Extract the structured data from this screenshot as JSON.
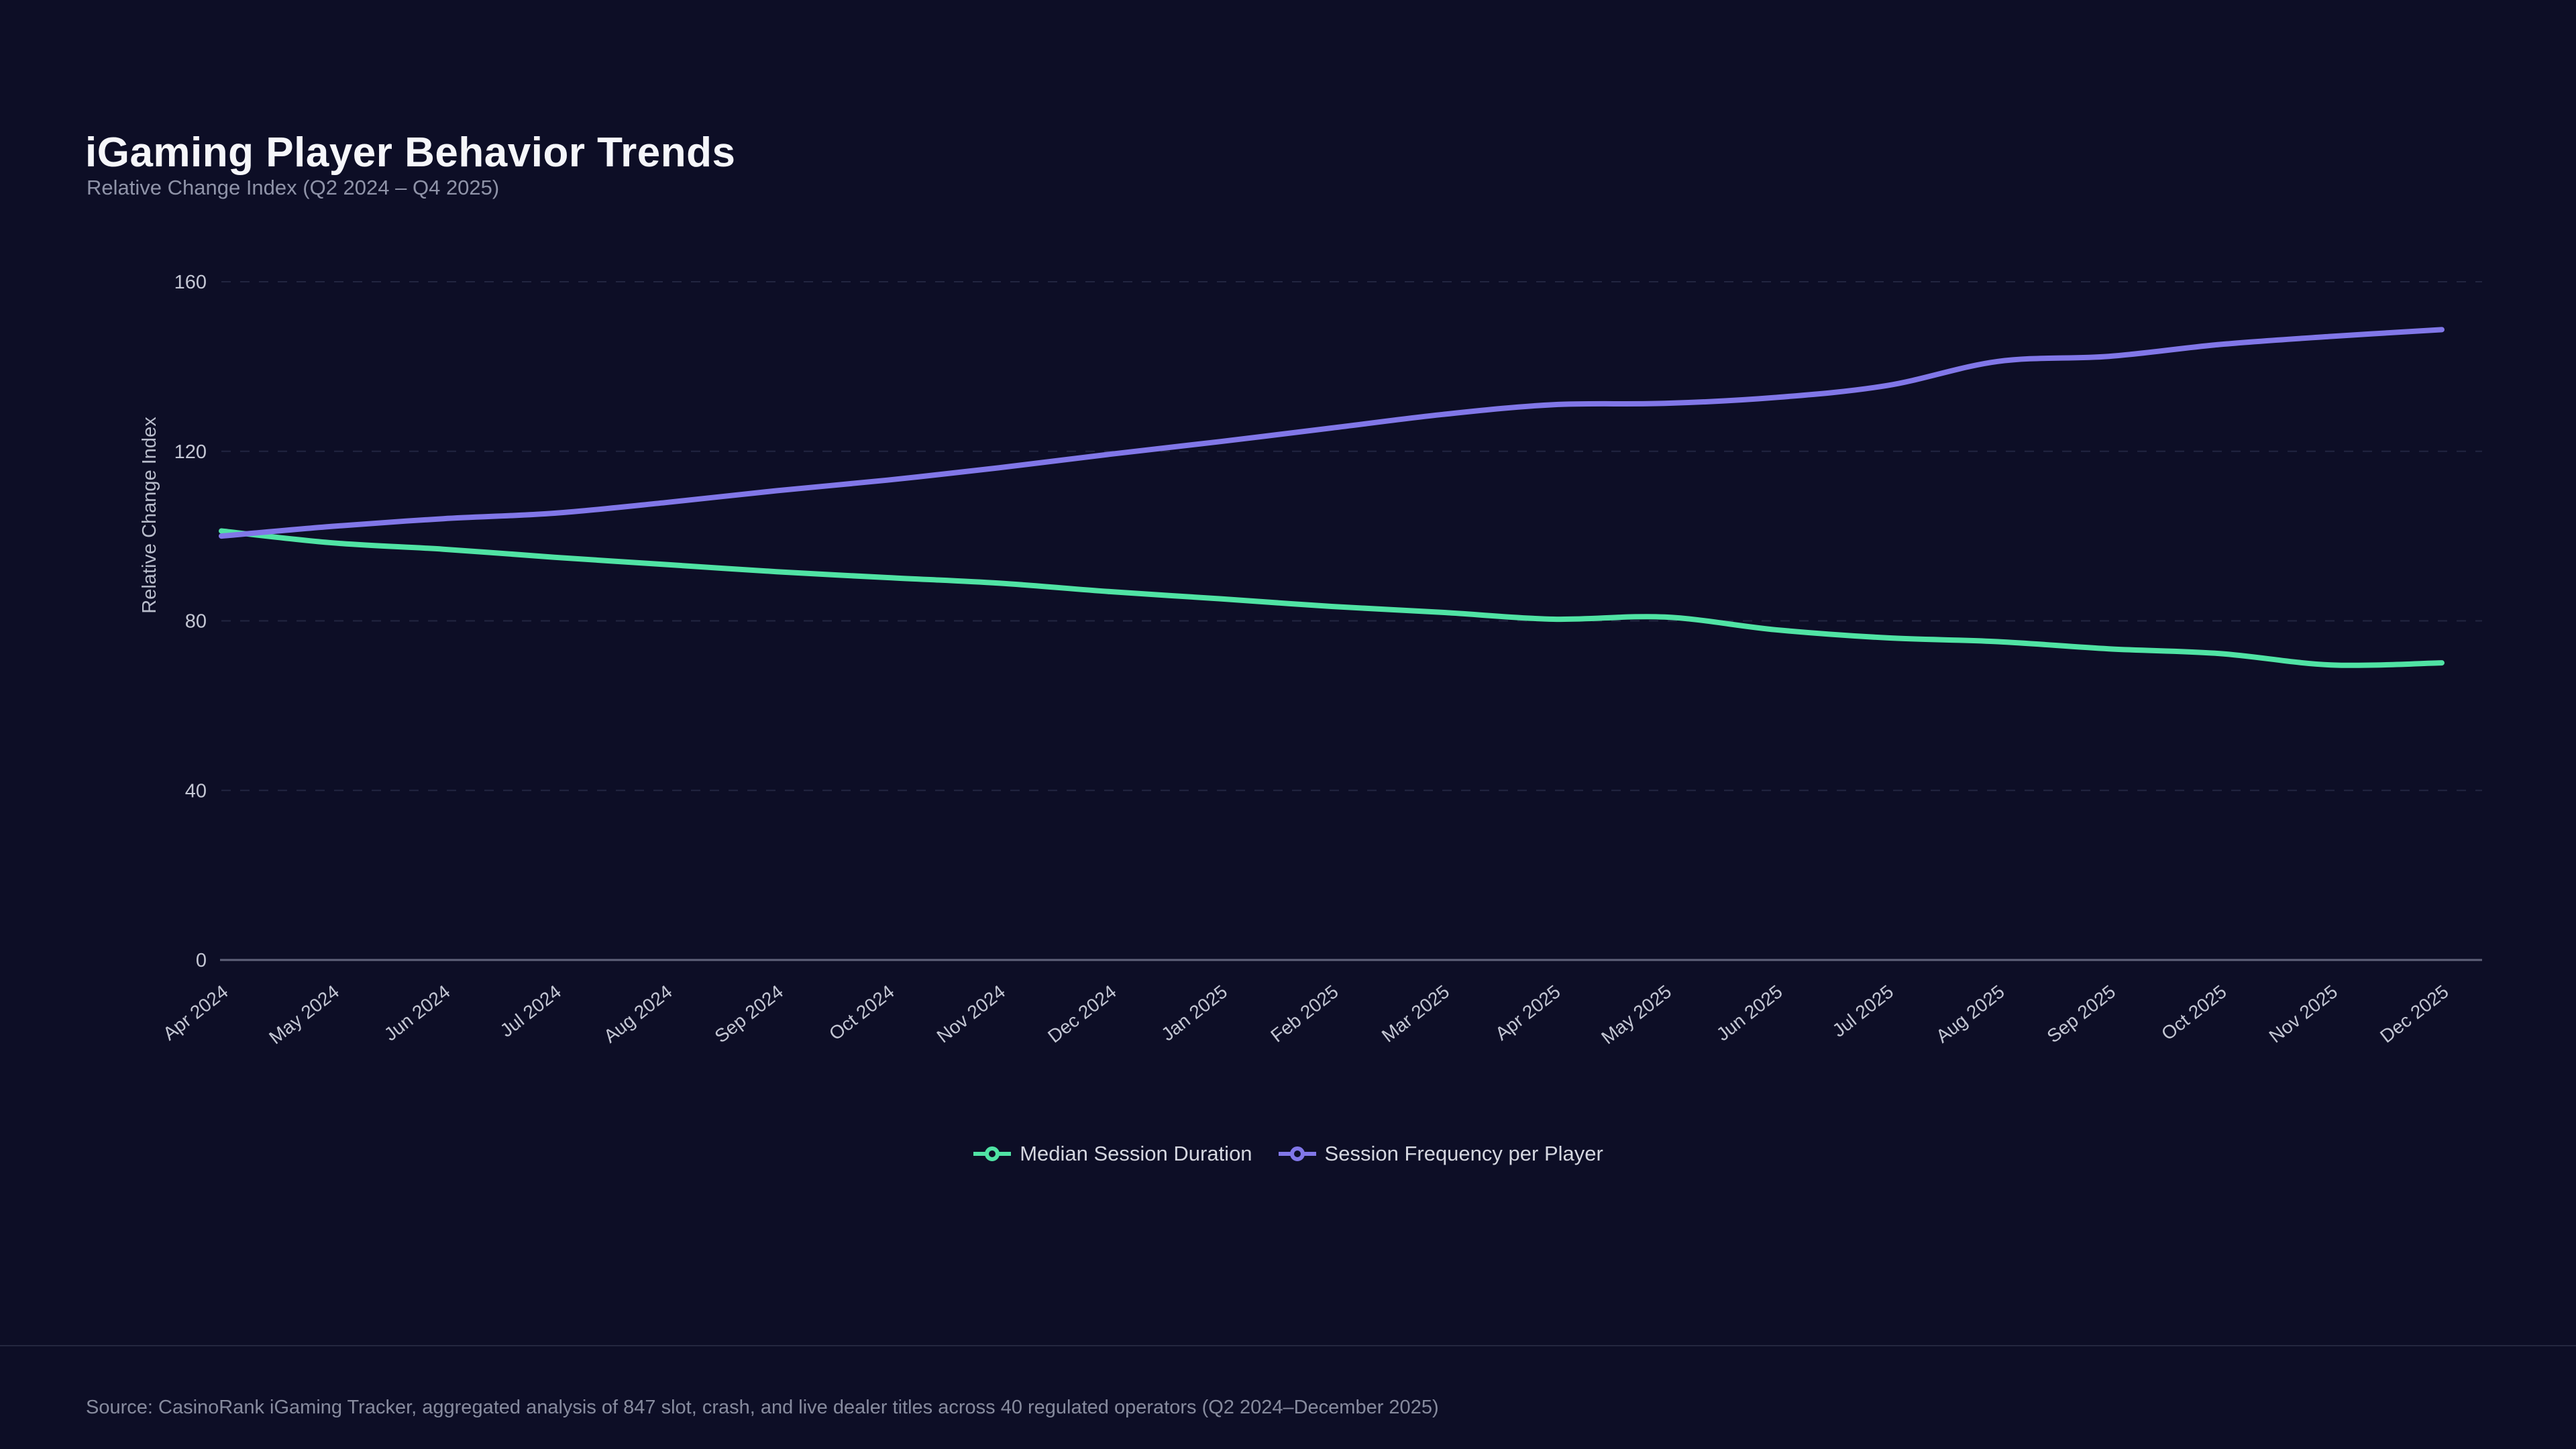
{
  "page": {
    "background_color": "#0d0e26"
  },
  "header": {
    "title": "iGaming Player Behavior Trends",
    "subtitle": "Relative Change Index (Q2 2024 – Q4 2025)"
  },
  "chart_data": {
    "type": "line",
    "title": "iGaming Player Behavior Trends",
    "subtitle": "Relative Change Index (Q2 2024 – Q4 2025)",
    "xlabel": "",
    "ylabel": "Relative Change Index",
    "categories": [
      "Apr 2024",
      "May 2024",
      "Jun 2024",
      "Jul 2024",
      "Aug 2024",
      "Sep 2024",
      "Oct 2024",
      "Nov 2024",
      "Dec 2024",
      "Jan 2025",
      "Feb 2025",
      "Mar 2025",
      "Apr 2025",
      "May 2025",
      "Jun 2025",
      "Jul 2025",
      "Aug 2025",
      "Sep 2025",
      "Oct 2025",
      "Nov 2025",
      "Dec 2025"
    ],
    "series": [
      {
        "name": "Median Session Duration",
        "color": "#50e3a4",
        "values": [
          101.2,
          98.4,
          96.9,
          95.0,
          93.3,
          91.6,
          90.2,
          88.9,
          86.9,
          85.2,
          83.4,
          82.0,
          80.4,
          80.9,
          77.9,
          76.0,
          75.1,
          73.4,
          72.3,
          69.6,
          70.1
        ]
      },
      {
        "name": "Session Frequency per Player",
        "color": "#8177e8",
        "values": [
          100.0,
          102.3,
          104.1,
          105.4,
          107.9,
          110.7,
          113.2,
          116.1,
          119.3,
          122.3,
          125.5,
          128.7,
          131.0,
          131.3,
          132.7,
          135.5,
          141.2,
          142.4,
          145.2,
          147.1,
          148.7
        ]
      }
    ],
    "ylim": [
      0,
      160
    ],
    "yticks": [
      0,
      40,
      80,
      120,
      160
    ],
    "grid": "horizontal-dashed",
    "legend_position": "bottom-center",
    "x_tick_rotation_deg": -38
  },
  "footer": {
    "source": "Source: CasinoRank iGaming Tracker, aggregated analysis of 847 slot, crash, and live dealer titles across 40 regulated operators (Q2 2024–December 2025)"
  },
  "colors": {
    "background": "#0d0e26",
    "title_text": "#f5f6fa",
    "subtitle_text": "#8f93a8",
    "axis_line": "#60627a",
    "gridline": "#222540",
    "tick_label_text": "#c4c7d4",
    "axis_title_text": "#b9bdcc",
    "legend_text": "#d5d7e0",
    "source_text": "#878b9e",
    "divider": "#24273f",
    "series_green": "#50e3a4",
    "series_purple": "#8177e8"
  }
}
